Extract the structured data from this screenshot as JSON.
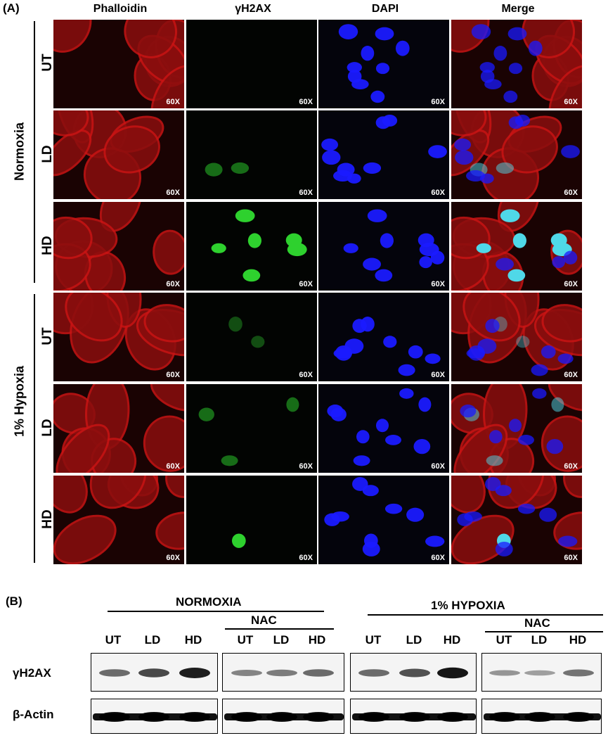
{
  "panel_a": {
    "label": "(A)",
    "columns": [
      "Phalloidin",
      "γH2AX",
      "DAPI",
      "Merge"
    ],
    "conditions": [
      "Normoxia",
      "1% Hypoxia"
    ],
    "rows": [
      "UT",
      "LD",
      "HD",
      "UT",
      "LD",
      "HD"
    ],
    "magnification": "60X"
  },
  "panel_b": {
    "label": "(B)",
    "groups": [
      "NORMOXIA",
      "1% HYPOXIA"
    ],
    "nac": "NAC",
    "lanes": [
      "UT",
      "LD",
      "HD"
    ],
    "row_labels": [
      "γH2AX",
      "β-Actin"
    ]
  },
  "colors": {
    "phalloidin": "#c81414",
    "gh2ax": "#2ed12e",
    "dapi": "#1a1aff",
    "merge_overlap": "#4fd8e8"
  }
}
